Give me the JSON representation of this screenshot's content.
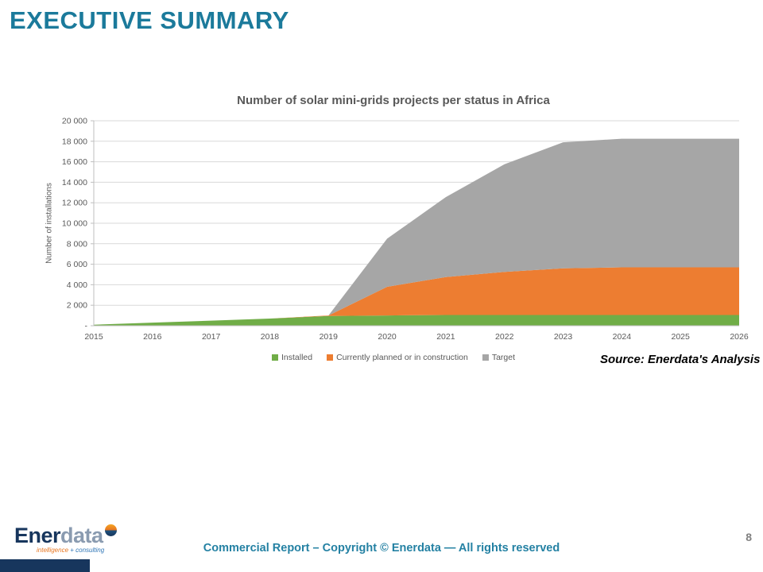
{
  "slide": {
    "title": "EXECUTIVE SUMMARY",
    "source": "Source: Enerdata's Analysis",
    "footer": "Commercial Report – Copyright © Enerdata — All rights reserved",
    "page_number": "8"
  },
  "logo": {
    "name_part1": "Ener",
    "name_part2": "data",
    "tagline_part1": "intelligence",
    "tagline_part2": "+ consulting"
  },
  "colors": {
    "title_teal": "#1B7A9B",
    "footer_teal": "#2481A3",
    "installed_green": "#70AD47",
    "planned_orange": "#ED7D31",
    "target_gray": "#A6A6A6",
    "axis_text_gray": "#595959",
    "gridline_gray": "#D9D9D9",
    "logo_navy": "#17365D"
  },
  "chart_data": {
    "type": "area",
    "stacked": true,
    "title": "Number of solar mini-grids projects per status in Africa",
    "xlabel": "",
    "ylabel": "Number of installations",
    "ylim": [
      0,
      20000
    ],
    "ytick_step": 2000,
    "ytick_labels": [
      "-",
      "2 000",
      "4 000",
      "6 000",
      "8 000",
      "10 000",
      "12 000",
      "14 000",
      "16 000",
      "18 000",
      "20 000"
    ],
    "grid": true,
    "legend_position": "bottom",
    "categories": [
      2015,
      2016,
      2017,
      2018,
      2019,
      2020,
      2021,
      2022,
      2023,
      2024,
      2025,
      2026
    ],
    "series": [
      {
        "name": "Installed",
        "color": "#70AD47",
        "values": [
          100,
          300,
          500,
          700,
          950,
          1000,
          1050,
          1050,
          1050,
          1050,
          1050,
          1050
        ]
      },
      {
        "name": "Currently planned or in construction",
        "color": "#ED7D31",
        "values": [
          0,
          0,
          0,
          0,
          50,
          2800,
          3700,
          4200,
          4550,
          4650,
          4650,
          4650
        ]
      },
      {
        "name": "Target",
        "color": "#A6A6A6",
        "values": [
          0,
          0,
          0,
          0,
          0,
          4700,
          7800,
          10500,
          12300,
          12550,
          12550,
          12550
        ]
      }
    ]
  }
}
